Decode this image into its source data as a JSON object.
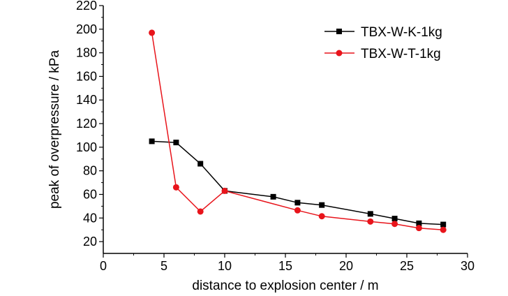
{
  "chart_data": {
    "type": "line",
    "title": "",
    "xlabel": "distance to explosion center / m",
    "ylabel": "peak of overpressure / kPa",
    "xlim": [
      0,
      30
    ],
    "ylim": [
      10,
      220
    ],
    "xticks": [
      0,
      5,
      10,
      15,
      20,
      25,
      30
    ],
    "yticks": [
      20,
      40,
      60,
      80,
      100,
      120,
      140,
      160,
      180,
      200,
      220
    ],
    "grid": false,
    "legend_position": "top-right",
    "series": [
      {
        "name": "TBX-W-K-1kg",
        "color": "#000000",
        "marker": "square",
        "x": [
          4,
          6,
          8,
          10,
          14,
          16,
          18,
          22,
          24,
          26,
          28
        ],
        "y": [
          105,
          104,
          86,
          63,
          58,
          53,
          51,
          43.5,
          39.5,
          35.5,
          34.5
        ]
      },
      {
        "name": "TBX-W-T-1kg",
        "color": "#e8141b",
        "marker": "circle",
        "x": [
          4,
          6,
          8,
          10,
          16,
          18,
          22,
          24,
          26,
          28
        ],
        "y": [
          197,
          66,
          45.5,
          63,
          46.5,
          41.5,
          37,
          35,
          31.5,
          30
        ]
      }
    ]
  }
}
